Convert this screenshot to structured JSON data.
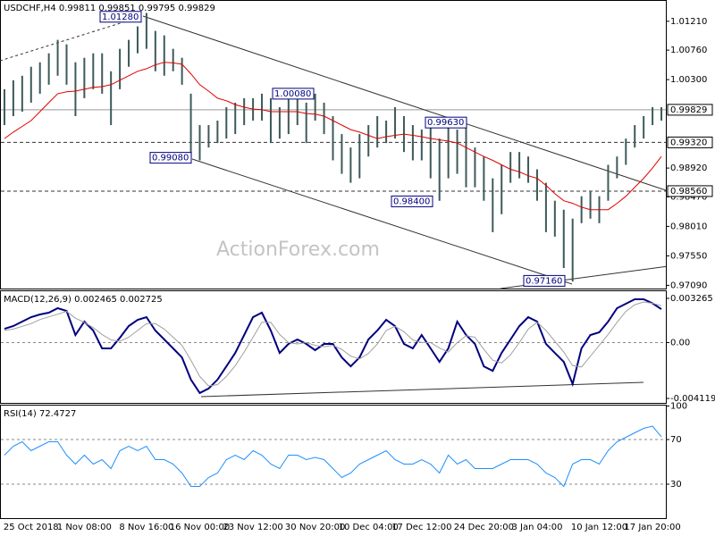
{
  "chart_data": [
    {
      "type": "range-bar",
      "title": "USDCHF,H4  0.99811 0.99851 0.99795 0.99829",
      "watermark": "ActionForex.com",
      "categories": [
        null,
        null,
        null,
        "25 Oct 2018",
        null,
        null,
        null,
        null,
        null,
        "1 Nov 08:00",
        null,
        null,
        null,
        null,
        null,
        null,
        "8 Nov 16:00",
        null,
        null,
        null,
        null,
        null,
        "16 Nov 00:00",
        null,
        null,
        null,
        null,
        null,
        "23 Nov 12:00",
        null,
        null,
        null,
        null,
        null,
        null,
        "30 Nov 20:00",
        null,
        null,
        null,
        null,
        null,
        "10 Dec 04:00",
        null,
        null,
        null,
        null,
        null,
        "17 Dec 12:00",
        null,
        null,
        null,
        null,
        null,
        null,
        "24 Dec 20:00",
        null,
        null,
        null,
        null,
        null,
        "3 Jan 04:00",
        null,
        null,
        null,
        null,
        null,
        null,
        "10 Jan 12:00",
        null,
        null,
        null,
        null,
        null,
        "17 Jan 20:00",
        null
      ],
      "high": [
        1.0015,
        1.0029,
        1.0036,
        1.005,
        1.0057,
        1.0071,
        1.0092,
        1.0085,
        1.0057,
        1.0064,
        1.0071,
        1.0071,
        1.0043,
        1.0078,
        1.0092,
        1.0113,
        1.0134,
        1.0106,
        1.0099,
        1.0078,
        1.0064,
        1.0008,
        0.9959,
        0.9959,
        0.9966,
        0.9987,
        0.9994,
        1.0001,
        1.0001,
        1.0008,
        1.0001,
        0.9987,
        1.0001,
        1.0001,
        0.9994,
        1.0008,
        0.9994,
        0.9973,
        0.9945,
        0.9924,
        0.9945,
        0.9959,
        0.9973,
        0.9966,
        0.9987,
        0.9973,
        0.9959,
        0.9952,
        0.9959,
        0.9938,
        0.9959,
        0.9952,
        0.9959,
        0.9924,
        0.991,
        0.9876,
        0.9897,
        0.9917,
        0.9917,
        0.991,
        0.989,
        0.9869,
        0.9841,
        0.9827,
        0.9813,
        0.9848,
        0.9855,
        0.9848,
        0.9897,
        0.991,
        0.9938,
        0.9959,
        0.9973,
        0.9987,
        0.9987
      ],
      "low": [
        0.9959,
        0.9973,
        0.998,
        0.9994,
        1.0008,
        1.0022,
        1.0036,
        1.0022,
        0.9973,
        1.0001,
        1.0015,
        1.0008,
        0.9959,
        1.0015,
        1.005,
        1.0071,
        1.0078,
        1.0043,
        1.0036,
        1.0043,
        1.0022,
        0.991,
        0.9904,
        0.9924,
        0.9931,
        0.9938,
        0.9945,
        0.9959,
        0.9966,
        0.9966,
        0.9931,
        0.9938,
        0.9945,
        0.9959,
        0.9931,
        0.9966,
        0.9945,
        0.9904,
        0.9883,
        0.9869,
        0.9876,
        0.991,
        0.9924,
        0.9931,
        0.9938,
        0.9917,
        0.9904,
        0.9904,
        0.9876,
        0.9841,
        0.9876,
        0.9883,
        0.9862,
        0.9862,
        0.9841,
        0.9792,
        0.982,
        0.9869,
        0.9876,
        0.9869,
        0.9841,
        0.9792,
        0.9785,
        0.9736,
        0.9715,
        0.9806,
        0.9813,
        0.9806,
        0.9841,
        0.9876,
        0.9897,
        0.9924,
        0.9938,
        0.9959,
        0.9966
      ],
      "bar_color": "#3d5a5a",
      "ma": [
        0.9938,
        0.9948,
        0.9957,
        0.9966,
        0.998,
        0.9994,
        1.0008,
        1.0011,
        1.0012,
        1.0015,
        1.0018,
        1.0019,
        1.0022,
        1.0029,
        1.0036,
        1.0043,
        1.0047,
        1.0053,
        1.0057,
        1.0056,
        1.0054,
        1.0039,
        1.0022,
        1.0012,
        1.0001,
        0.9997,
        0.9991,
        0.9987,
        0.9984,
        0.9983,
        0.998,
        0.998,
        0.998,
        0.998,
        0.9977,
        0.9976,
        0.9973,
        0.9966,
        0.9959,
        0.9952,
        0.9948,
        0.9943,
        0.9938,
        0.9941,
        0.9943,
        0.9945,
        0.9943,
        0.9941,
        0.9938,
        0.9936,
        0.9934,
        0.9931,
        0.9924,
        0.9917,
        0.991,
        0.9904,
        0.9897,
        0.989,
        0.9886,
        0.988,
        0.9876,
        0.9865,
        0.9852,
        0.9841,
        0.9837,
        0.9831,
        0.9827,
        0.9827,
        0.9827,
        0.9837,
        0.9848,
        0.9862,
        0.9876,
        0.9892,
        0.991
      ],
      "ma_color": "#e00000",
      "ylim": [
        0.9704,
        1.015
      ],
      "yticks": [
        {
          "value": 1.0121,
          "label": "1.01210"
        },
        {
          "value": 1.0076,
          "label": "1.00760"
        },
        {
          "value": 1.003,
          "label": "1.00300"
        },
        {
          "value": 0.9892,
          "label": "0.98920"
        },
        {
          "value": 0.9847,
          "label": "0.98470"
        },
        {
          "value": 0.9801,
          "label": "0.98010"
        },
        {
          "value": 0.9755,
          "label": "0.97550"
        },
        {
          "value": 0.9709,
          "label": "0.97090"
        }
      ],
      "levels": [
        {
          "value": 0.99829,
          "label": "0.99829"
        },
        {
          "value": 0.9932,
          "label": "0.99320"
        },
        {
          "value": 0.9856,
          "label": "0.98560"
        }
      ],
      "annotations": [
        {
          "value": 1.0128,
          "label": "1.01280"
        },
        {
          "value": 1.0008,
          "label": "1.00080"
        },
        {
          "value": 0.9963,
          "label": "0.99630"
        },
        {
          "value": 0.9908,
          "label": "0.99080"
        },
        {
          "value": 0.984,
          "label": "0.98400"
        },
        {
          "value": 0.9716,
          "label": "0.97160"
        }
      ],
      "grid": false
    },
    {
      "type": "line",
      "title": "MACD(12,26,9) 0.002465 0.002725",
      "series": [
        {
          "color": "#00007f",
          "width": 2,
          "values": [
            0.00102,
            0.00122,
            0.00155,
            0.00188,
            0.00208,
            0.00221,
            0.00254,
            0.00234,
            0.00056,
            0.00155,
            0.00089,
            -0.00043,
            -0.00043,
            0.00036,
            0.00122,
            0.00168,
            0.00188,
            0.00089,
            0.00023,
            -0.00043,
            -0.00109,
            -0.00273,
            -0.00372,
            -0.00339,
            -0.00273,
            -0.00175,
            -0.00076,
            0.00056,
            0.00188,
            0.00221,
            0.00089,
            -0.00076,
            -0.0001,
            0.00023,
            -0.0001,
            -0.00056,
            -0.0001,
            -0.0001,
            -0.00109,
            -0.00175,
            -0.00109,
            0.00023,
            0.00089,
            0.00168,
            0.00122,
            -0.0001,
            -0.00043,
            0.00056,
            -0.00043,
            -0.00142,
            -0.00043,
            0.00155,
            0.00056,
            -0.0001,
            -0.00175,
            -0.00208,
            -0.00076,
            0.00023,
            0.00122,
            0.00188,
            0.00155,
            -0.0001,
            -0.00076,
            -0.00142,
            -0.00306,
            -0.00043,
            0.00056,
            0.00076,
            0.00155,
            0.00254,
            0.00287,
            0.0032,
            0.0032,
            0.0029,
            0.002465
          ]
        },
        {
          "color": "#a0a0a0",
          "width": 1,
          "values": [
            0.0009,
            0.001,
            0.0012,
            0.0014,
            0.0017,
            0.0019,
            0.0021,
            0.0023,
            0.0018,
            0.0015,
            0.0011,
            0.0006,
            0.0002,
            0.0001,
            0.0004,
            0.0009,
            0.0014,
            0.0014,
            0.001,
            0.0004,
            -0.0002,
            -0.0013,
            -0.0025,
            -0.0032,
            -0.0031,
            -0.0025,
            -0.0017,
            -0.0007,
            0.0004,
            0.0015,
            0.0015,
            0.0006,
            0,
            -0.0001,
            0,
            -0.0002,
            -0.0003,
            -0.0002,
            -0.0005,
            -0.001,
            -0.0012,
            -0.0008,
            -0.0001,
            0.0009,
            0.0012,
            0.0008,
            0.0002,
            0,
            0,
            -0.0004,
            -0.0007,
            0,
            0.0005,
            0.0004,
            -0.0005,
            -0.0013,
            -0.0015,
            -0.0009,
            0,
            0.001,
            0.0015,
            0.0009,
            0.0001,
            -0.0007,
            -0.0017,
            -0.0018,
            -0.001,
            -0.0002,
            0.0006,
            0.0015,
            0.0023,
            0.0028,
            0.003,
            0.0029,
            0.002725
          ]
        }
      ],
      "ylim": [
        -0.004119,
        0.003265
      ],
      "yticks": [
        0.003265,
        {
          "value": 0,
          "label": "0.00"
        },
        -0.004119
      ],
      "grid": true
    },
    {
      "type": "line",
      "title": "RSI(14) 72.4727",
      "series": [
        {
          "color": "#1e90ff",
          "width": 1,
          "values": [
            56,
            64,
            68,
            60,
            64,
            68,
            68,
            56,
            48,
            56,
            48,
            52,
            44,
            60,
            64,
            60,
            64,
            52,
            52,
            48,
            40,
            28,
            28,
            36,
            40,
            52,
            56,
            52,
            60,
            56,
            48,
            44,
            56,
            56,
            52,
            54,
            52,
            44,
            36,
            40,
            48,
            52,
            56,
            60,
            52,
            48,
            48,
            52,
            48,
            40,
            56,
            48,
            52,
            44,
            44,
            44,
            48,
            52,
            52,
            52,
            48,
            40,
            36,
            28,
            48,
            52,
            52,
            48,
            60,
            68,
            72,
            76,
            80,
            82,
            72.4727
          ]
        }
      ],
      "ylim": [
        0,
        100
      ],
      "yticks": [
        30,
        70,
        100
      ],
      "grid": true
    }
  ]
}
